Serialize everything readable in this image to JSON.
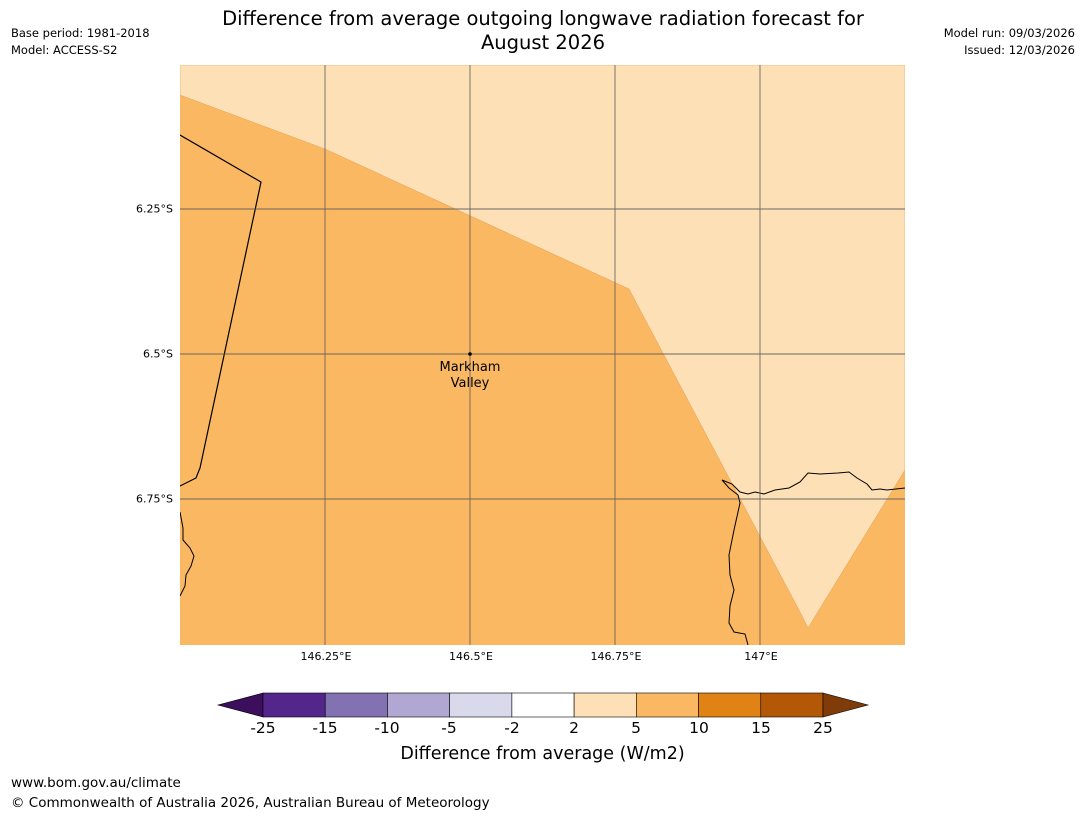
{
  "header": {
    "title_line1": "Difference from average outgoing longwave radiation forecast for",
    "title_line2": "August 2026",
    "base_period": "Base period: 1981-2018",
    "model": "Model: ACCESS-S2",
    "model_run": "Model run: 09/03/2026",
    "issued": "Issued: 12/03/2026"
  },
  "map": {
    "lat_labels": [
      "6.25°S",
      "6.5°S",
      "6.75°S"
    ],
    "lon_labels": [
      "146.25°E",
      "146.5°E",
      "146.75°E",
      "147°E"
    ],
    "place": {
      "name_line1": "Markham",
      "name_line2": "Valley"
    },
    "colors": {
      "light_orange": "#fde0b6",
      "mid_orange": "#fbb863",
      "grid": "#555555",
      "coast": "#000000"
    }
  },
  "colorbar": {
    "tick_labels": [
      "-25",
      "-15",
      "-10",
      "-5",
      "-2",
      "2",
      "5",
      "10",
      "15",
      "25"
    ],
    "colors": [
      "#3b0f5c",
      "#54258b",
      "#8272b1",
      "#b0a7d2",
      "#d9d9ec",
      "#ffffff",
      "#fde0b6",
      "#fbb863",
      "#e08214",
      "#b35806",
      "#7f3b08"
    ],
    "label": "Difference from average (W/m2)"
  },
  "footer": {
    "url": "www.bom.gov.au/climate",
    "copyright": "© Commonwealth of Australia 2026, Australian Bureau of Meteorology"
  }
}
